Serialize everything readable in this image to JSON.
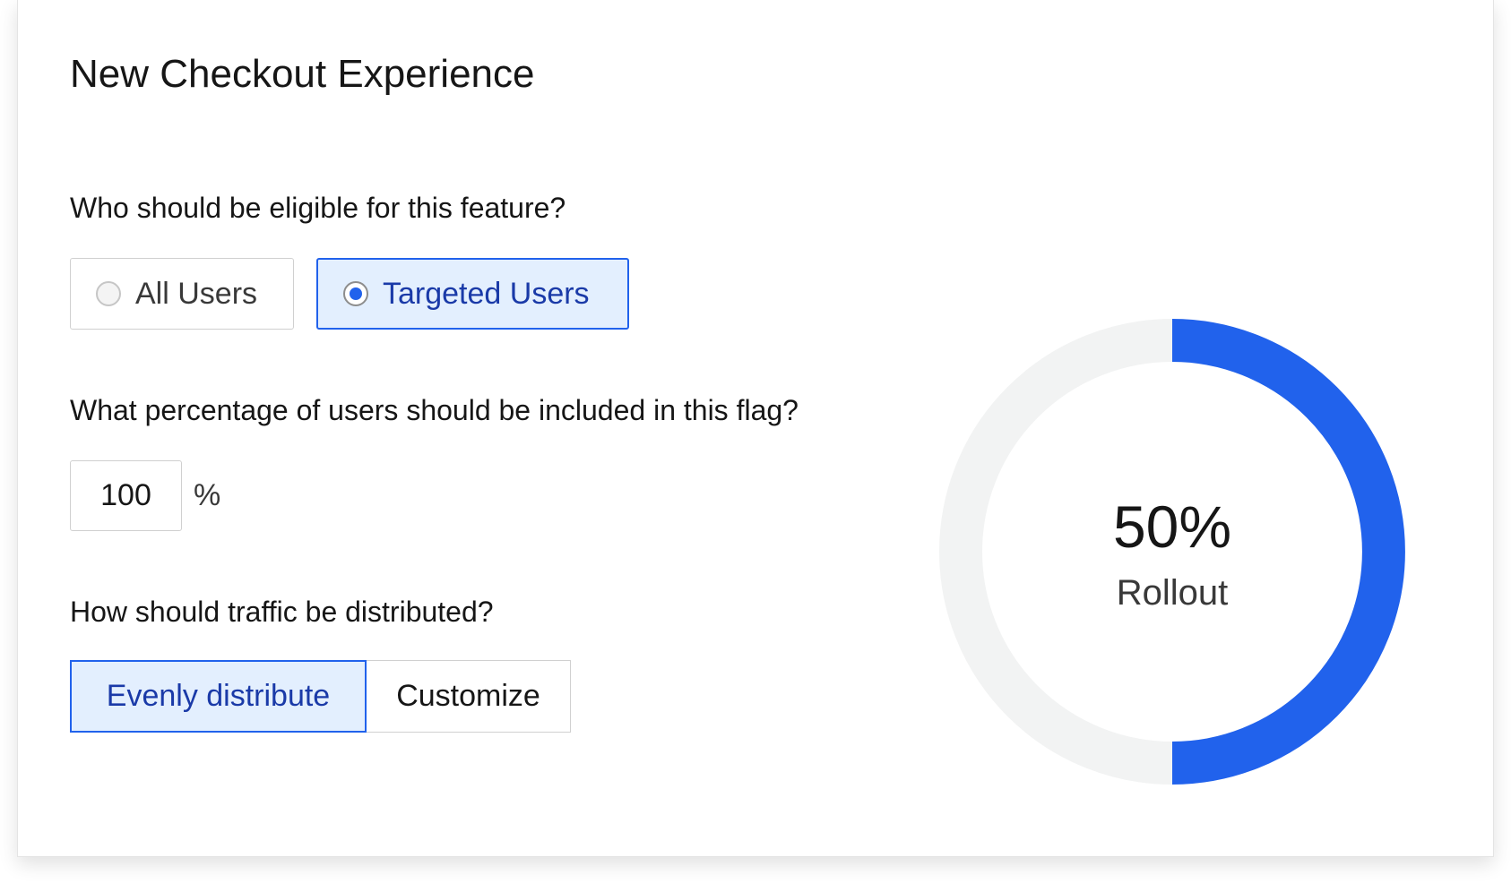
{
  "title": "New Checkout Experience",
  "eligibility": {
    "question": "Who should be eligible for this feature?",
    "options": [
      {
        "label": "All Users",
        "selected": false
      },
      {
        "label": "Targeted Users",
        "selected": true
      }
    ]
  },
  "percentage": {
    "question": "What percentage of users should be included in this flag?",
    "value": "100",
    "unit": "%"
  },
  "distribution": {
    "question": "How should traffic be distributed?",
    "options": [
      {
        "label": "Evenly distribute",
        "selected": true
      },
      {
        "label": "Customize",
        "selected": false
      }
    ]
  },
  "rollout": {
    "value_label": "50%",
    "label": "Rollout",
    "fraction": 0.5,
    "fill_color": "#2162ec",
    "track_color": "#f2f3f3"
  }
}
